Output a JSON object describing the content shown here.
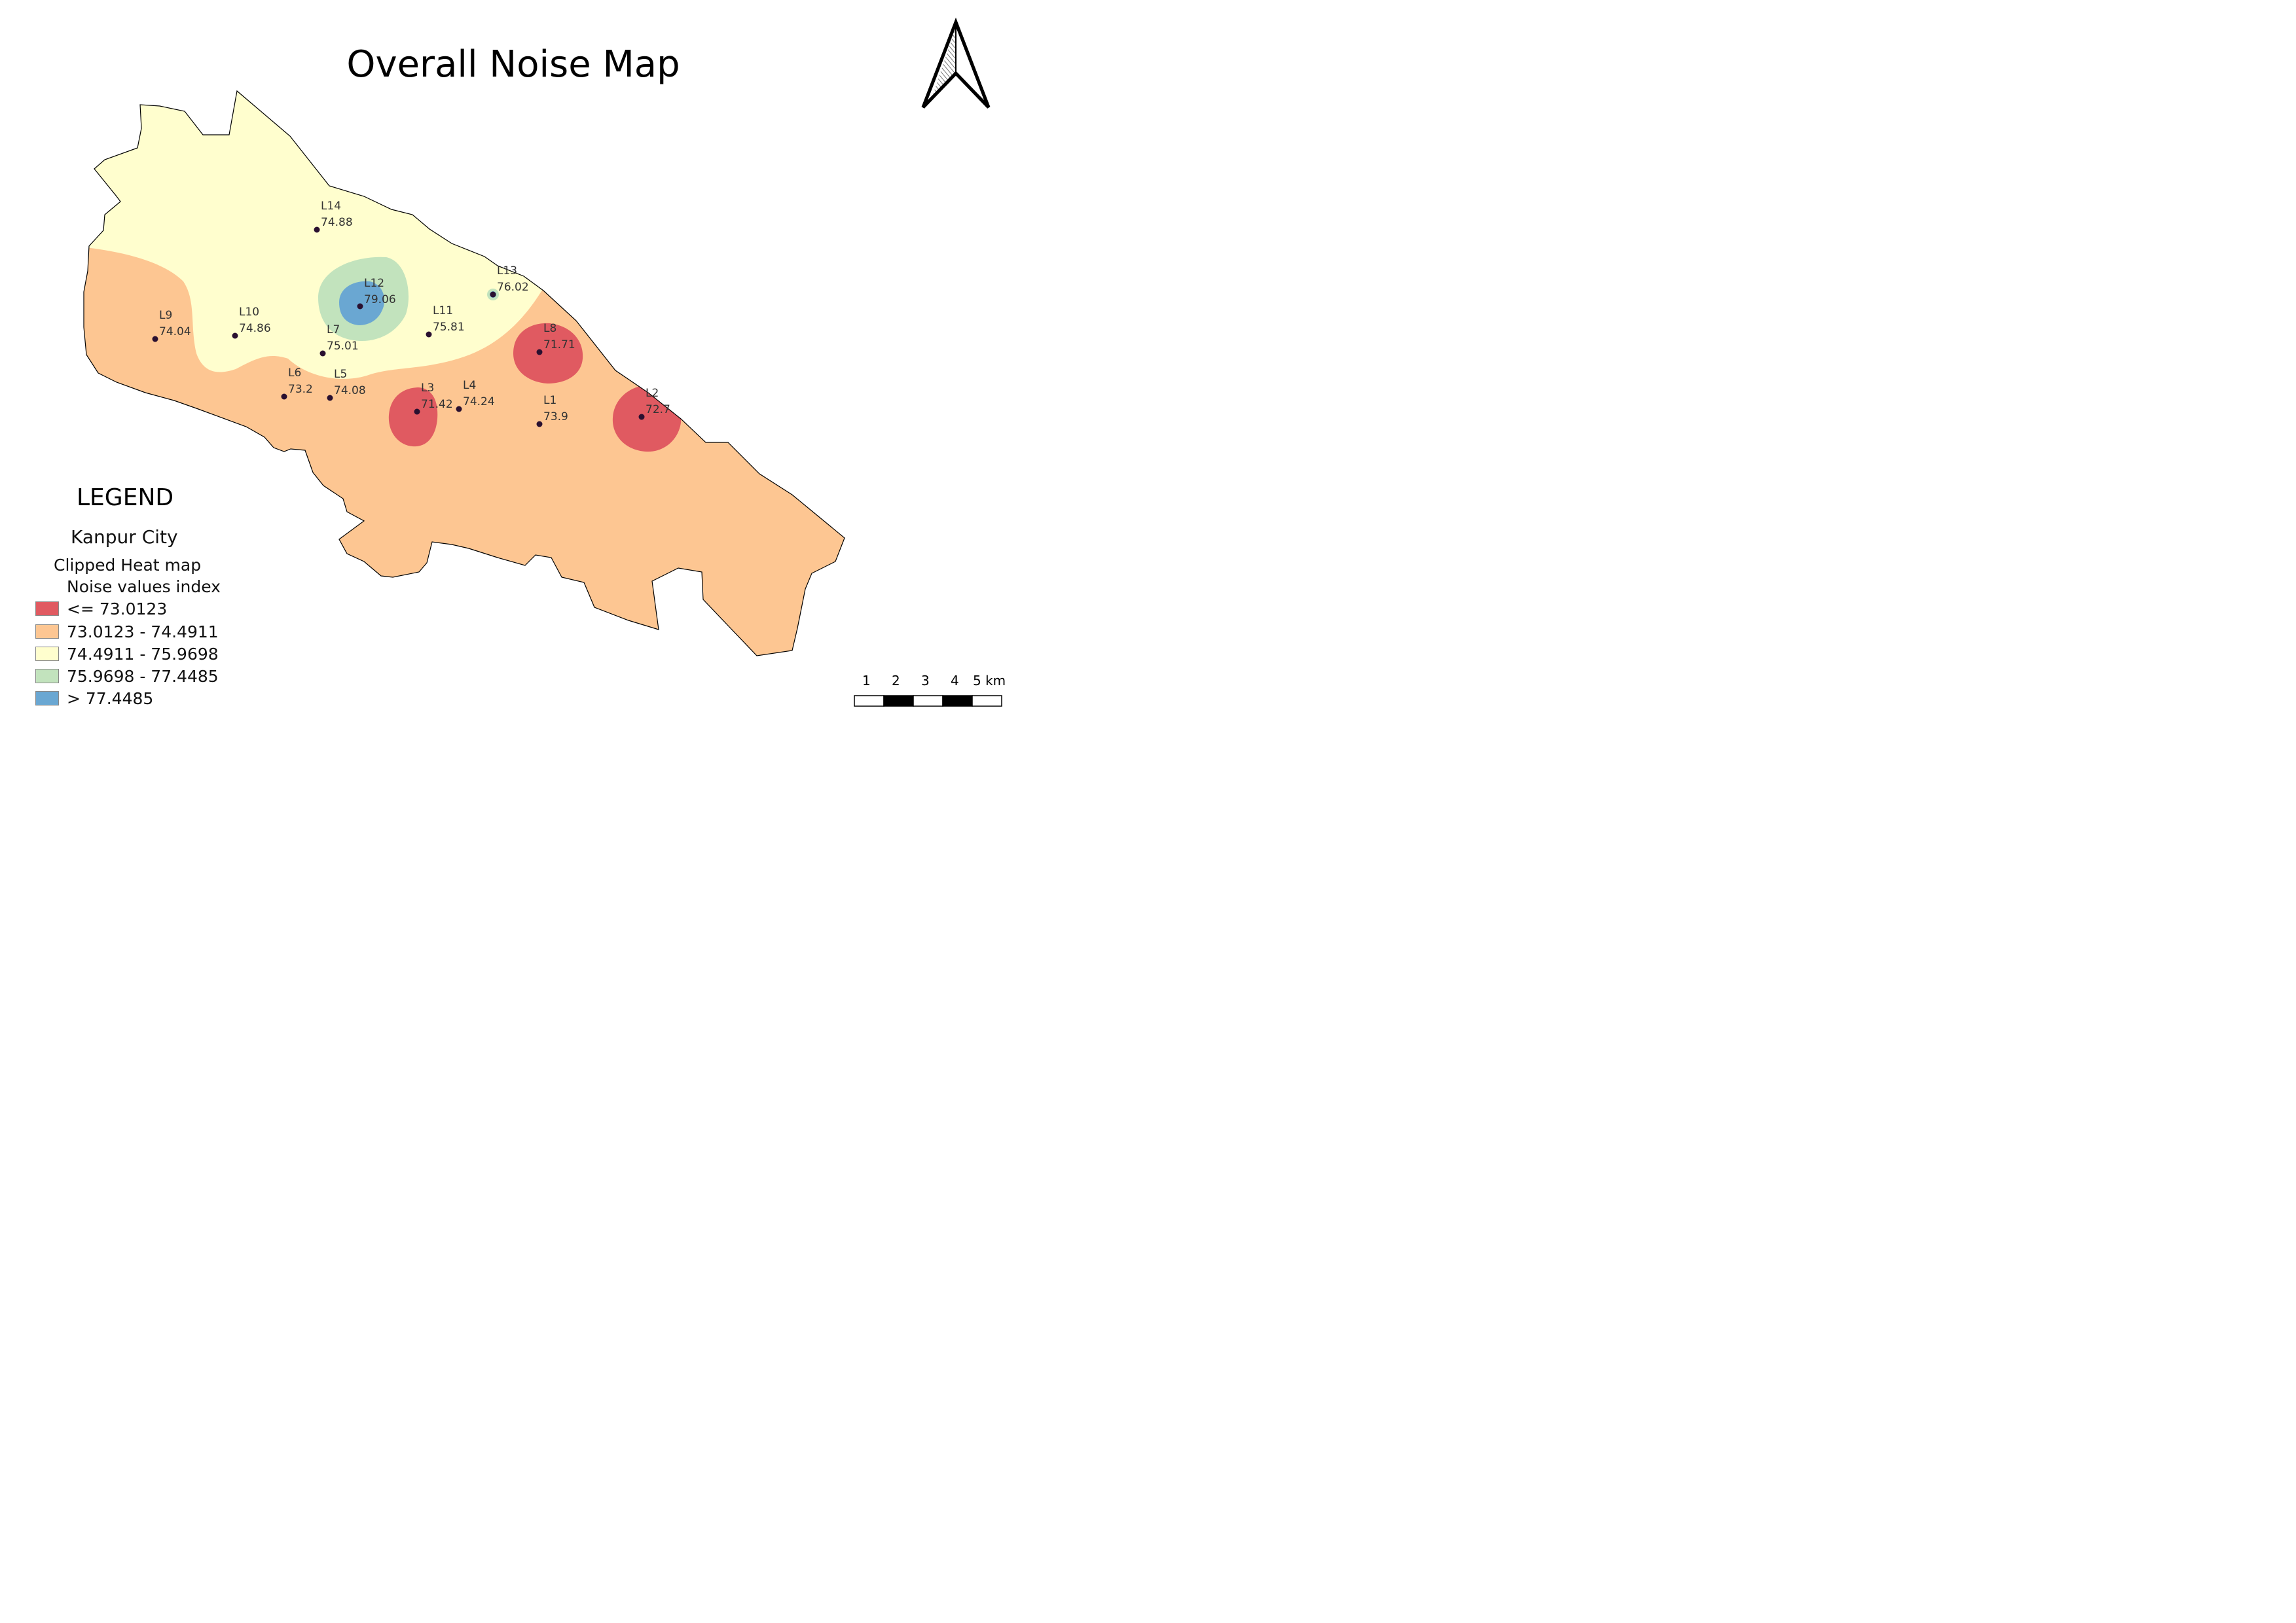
{
  "title": "Overall Noise Map",
  "legend": {
    "heading": "LEGEND",
    "boundary_layer": "Kanpur City",
    "heat_layer": "Clipped Heat map",
    "index_title": "Noise values index",
    "classes": [
      {
        "label": "<= 73.0123",
        "color": "#e05a61"
      },
      {
        "label": "73.0123 - 74.4911",
        "color": "#fdc692"
      },
      {
        "label": "74.4911 - 75.9698",
        "color": "#fffece"
      },
      {
        "label": "75.9698 - 77.4485",
        "color": "#c2e3bd"
      },
      {
        "label": "> 77.4485",
        "color": "#6aa7d2"
      }
    ]
  },
  "stations": [
    {
      "id": "L1",
      "value": "73.9"
    },
    {
      "id": "L2",
      "value": "72.7"
    },
    {
      "id": "L3",
      "value": "71.42"
    },
    {
      "id": "L4",
      "value": "74.24"
    },
    {
      "id": "L5",
      "value": "74.08"
    },
    {
      "id": "L6",
      "value": "73.2"
    },
    {
      "id": "L7",
      "value": "75.01"
    },
    {
      "id": "L8",
      "value": "71.71"
    },
    {
      "id": "L9",
      "value": "74.04"
    },
    {
      "id": "L10",
      "value": "74.86"
    },
    {
      "id": "L11",
      "value": "75.81"
    },
    {
      "id": "L12",
      "value": "79.06"
    },
    {
      "id": "L13",
      "value": "76.02"
    },
    {
      "id": "L14",
      "value": "74.88"
    }
  ],
  "scale_bar": {
    "ticks": [
      "1",
      "2",
      "3",
      "4"
    ],
    "last": "5 km"
  },
  "north_arrow_icon": "north-arrow-icon",
  "colors": {
    "boundary": "#000000",
    "point": "#2a1030"
  }
}
